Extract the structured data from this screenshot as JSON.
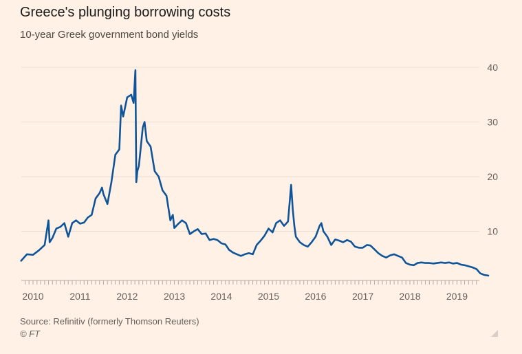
{
  "header": {
    "title": "Greece's plunging borrowing costs",
    "subtitle": "10-year Greek government bond yields"
  },
  "footer": {
    "source": "Source: Refinitiv (formerly Thomson Reuters)",
    "copyright": "© FT"
  },
  "icons": {
    "corner": "resize-corner-icon"
  },
  "colors": {
    "background": "#fff1e5",
    "line": "#0f5499",
    "grid": "#e9dfd5",
    "axis": "#b3aba4"
  },
  "chart_data": {
    "type": "line",
    "title": "Greece's plunging borrowing costs",
    "subtitle": "10-year Greek government bond yields",
    "xlabel": "",
    "ylabel": "",
    "ylim": [
      0,
      40
    ],
    "y_ticks": [
      10,
      20,
      30,
      40
    ],
    "x_ticks": [
      "2010",
      "2011",
      "2012",
      "2013",
      "2014",
      "2015",
      "2016",
      "2017",
      "2018",
      "2019"
    ],
    "grid": true,
    "series": [
      {
        "x": [
          "2009-10-01",
          "2009-11-15",
          "2010-01-01",
          "2010-02-15",
          "2010-04-01",
          "2010-05-01",
          "2010-05-10",
          "2010-06-01",
          "2010-07-01",
          "2010-08-01",
          "2010-09-01",
          "2010-10-01",
          "2010-11-01",
          "2010-12-01",
          "2011-01-01",
          "2011-02-01",
          "2011-03-01",
          "2011-04-01",
          "2011-05-01",
          "2011-06-01",
          "2011-06-20",
          "2011-07-01",
          "2011-08-01",
          "2011-09-01",
          "2011-10-01",
          "2011-11-01",
          "2011-11-15",
          "2011-12-01",
          "2012-01-01",
          "2012-02-01",
          "2012-02-20",
          "2012-03-01",
          "2012-03-05",
          "2012-03-12",
          "2012-03-20",
          "2012-04-01",
          "2012-05-01",
          "2012-05-15",
          "2012-06-01",
          "2012-07-01",
          "2012-08-01",
          "2012-09-01",
          "2012-10-01",
          "2012-11-01",
          "2012-12-01",
          "2012-12-20",
          "2013-01-01",
          "2013-02-01",
          "2013-03-01",
          "2013-04-01",
          "2013-05-01",
          "2013-06-01",
          "2013-07-01",
          "2013-08-01",
          "2013-09-01",
          "2013-10-01",
          "2013-11-01",
          "2013-12-01",
          "2014-01-01",
          "2014-02-01",
          "2014-03-01",
          "2014-04-01",
          "2014-05-01",
          "2014-06-01",
          "2014-07-01",
          "2014-08-01",
          "2014-09-01",
          "2014-10-01",
          "2014-11-01",
          "2014-12-01",
          "2015-01-01",
          "2015-02-01",
          "2015-03-01",
          "2015-04-01",
          "2015-05-01",
          "2015-06-01",
          "2015-06-25",
          "2015-07-08",
          "2015-07-20",
          "2015-08-01",
          "2015-09-01",
          "2015-10-01",
          "2015-11-01",
          "2015-12-01",
          "2016-01-01",
          "2016-02-01",
          "2016-02-15",
          "2016-03-01",
          "2016-04-01",
          "2016-05-01",
          "2016-06-01",
          "2016-07-01",
          "2016-08-01",
          "2016-09-01",
          "2016-10-01",
          "2016-11-01",
          "2016-12-01",
          "2017-01-01",
          "2017-02-01",
          "2017-03-01",
          "2017-04-01",
          "2017-05-01",
          "2017-06-01",
          "2017-07-01",
          "2017-08-01",
          "2017-09-01",
          "2017-10-01",
          "2017-11-01",
          "2017-12-01",
          "2018-01-01",
          "2018-02-01",
          "2018-03-01",
          "2018-04-01",
          "2018-05-01",
          "2018-06-01",
          "2018-07-01",
          "2018-08-01",
          "2018-09-01",
          "2018-10-01",
          "2018-11-01",
          "2018-12-01",
          "2019-01-01",
          "2019-02-01",
          "2019-03-01",
          "2019-04-01",
          "2019-05-01",
          "2019-06-01",
          "2019-07-01",
          "2019-08-01",
          "2019-09-01"
        ],
        "values": [
          4.6,
          5.8,
          5.7,
          6.5,
          7.5,
          12.0,
          8.0,
          8.8,
          10.5,
          10.8,
          11.5,
          9.0,
          11.5,
          12.0,
          11.4,
          11.6,
          12.5,
          13.0,
          16.0,
          17.0,
          18.0,
          16.8,
          15.0,
          19.0,
          24.0,
          25.0,
          33.0,
          31.0,
          34.5,
          35.0,
          33.5,
          38.0,
          39.5,
          19.0,
          21.0,
          22.0,
          29.0,
          30.0,
          26.5,
          25.5,
          21.0,
          20.0,
          17.5,
          16.5,
          12.0,
          13.0,
          10.6,
          11.4,
          12.0,
          11.5,
          9.5,
          10.0,
          10.4,
          9.5,
          9.6,
          8.4,
          8.6,
          8.4,
          7.8,
          7.6,
          6.6,
          6.1,
          5.8,
          5.5,
          5.8,
          6.0,
          5.8,
          7.5,
          8.3,
          9.2,
          10.5,
          9.8,
          11.5,
          12.0,
          11.0,
          11.8,
          18.5,
          14.0,
          11.0,
          9.0,
          8.0,
          7.5,
          7.2,
          8.0,
          9.0,
          11.0,
          11.5,
          10.0,
          9.0,
          7.5,
          8.5,
          8.3,
          8.0,
          8.4,
          8.1,
          7.2,
          7.0,
          7.0,
          7.5,
          7.4,
          6.7,
          6.0,
          5.5,
          5.2,
          5.6,
          5.8,
          5.5,
          5.2,
          4.2,
          3.9,
          3.8,
          4.2,
          4.3,
          4.2,
          4.2,
          4.1,
          4.2,
          4.3,
          4.2,
          4.3,
          4.1,
          4.2,
          3.9,
          3.8,
          3.6,
          3.4,
          3.1,
          2.3,
          2.0,
          1.9
        ]
      }
    ],
    "annotations": []
  }
}
